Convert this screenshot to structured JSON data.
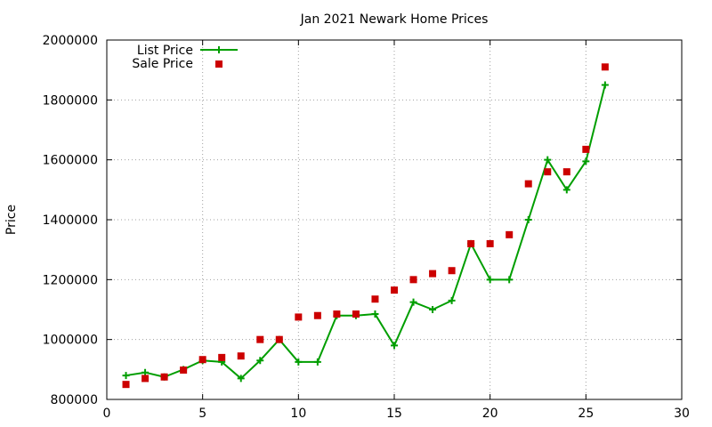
{
  "chart_data": {
    "type": "line",
    "title": "Jan 2021 Newark Home Prices",
    "xlabel": "",
    "ylabel": "Price",
    "xlim": [
      0,
      30
    ],
    "ylim": [
      800000,
      2000000
    ],
    "xticks": [
      0,
      5,
      10,
      15,
      20,
      25,
      30
    ],
    "yticks": [
      800000,
      1000000,
      1200000,
      1400000,
      1600000,
      1800000,
      2000000
    ],
    "grid": true,
    "legend_position": "top-left",
    "series": [
      {
        "name": "List Price",
        "style": "line-points",
        "marker": "plus",
        "color": "#009e00",
        "x": [
          1,
          2,
          3,
          4,
          5,
          6,
          7,
          8,
          9,
          10,
          11,
          12,
          13,
          14,
          15,
          16,
          17,
          18,
          19,
          20,
          21,
          22,
          23,
          24,
          25,
          26
        ],
        "values": [
          880000,
          890000,
          875000,
          900000,
          930000,
          925000,
          870000,
          930000,
          1000000,
          925000,
          925000,
          1080000,
          1080000,
          1085000,
          980000,
          1125000,
          1100000,
          1130000,
          1320000,
          1200000,
          1200000,
          1400000,
          1600000,
          1500000,
          1595000,
          1850000
        ]
      },
      {
        "name": "Sale Price",
        "style": "points",
        "marker": "square",
        "color": "#cc0000",
        "x": [
          1,
          2,
          3,
          4,
          5,
          6,
          7,
          8,
          9,
          10,
          11,
          12,
          13,
          14,
          15,
          16,
          17,
          18,
          19,
          20,
          21,
          22,
          23,
          24,
          25,
          26
        ],
        "values": [
          850000,
          870000,
          875000,
          898000,
          933000,
          940000,
          945000,
          1000000,
          1000000,
          1075000,
          1080000,
          1085000,
          1085000,
          1135000,
          1165000,
          1200000,
          1220000,
          1230000,
          1320000,
          1320000,
          1350000,
          1520000,
          1560000,
          1560000,
          1635000,
          1910000
        ]
      }
    ]
  }
}
